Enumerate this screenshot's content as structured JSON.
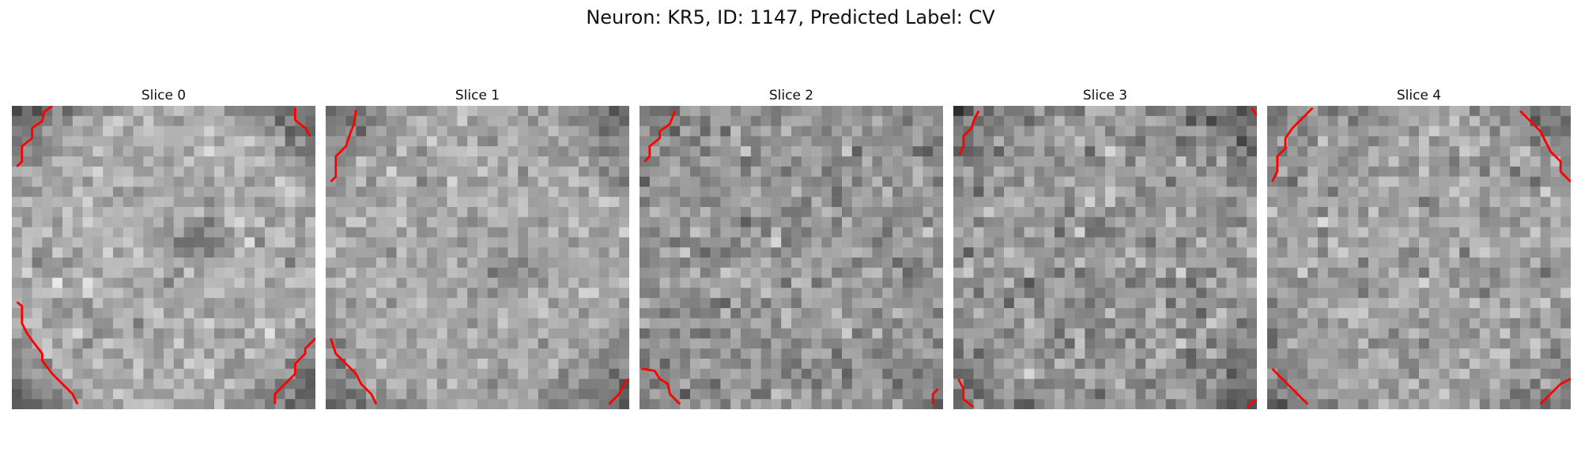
{
  "figure": {
    "title": "Neuron: KR5, ID: 1147, Predicted Label: CV",
    "contour_color": "#ff0000"
  },
  "panels": [
    {
      "title": "Slice 0"
    },
    {
      "title": "Slice 1"
    },
    {
      "title": "Slice 2"
    },
    {
      "title": "Slice 3"
    },
    {
      "title": "Slice 4"
    }
  ]
}
